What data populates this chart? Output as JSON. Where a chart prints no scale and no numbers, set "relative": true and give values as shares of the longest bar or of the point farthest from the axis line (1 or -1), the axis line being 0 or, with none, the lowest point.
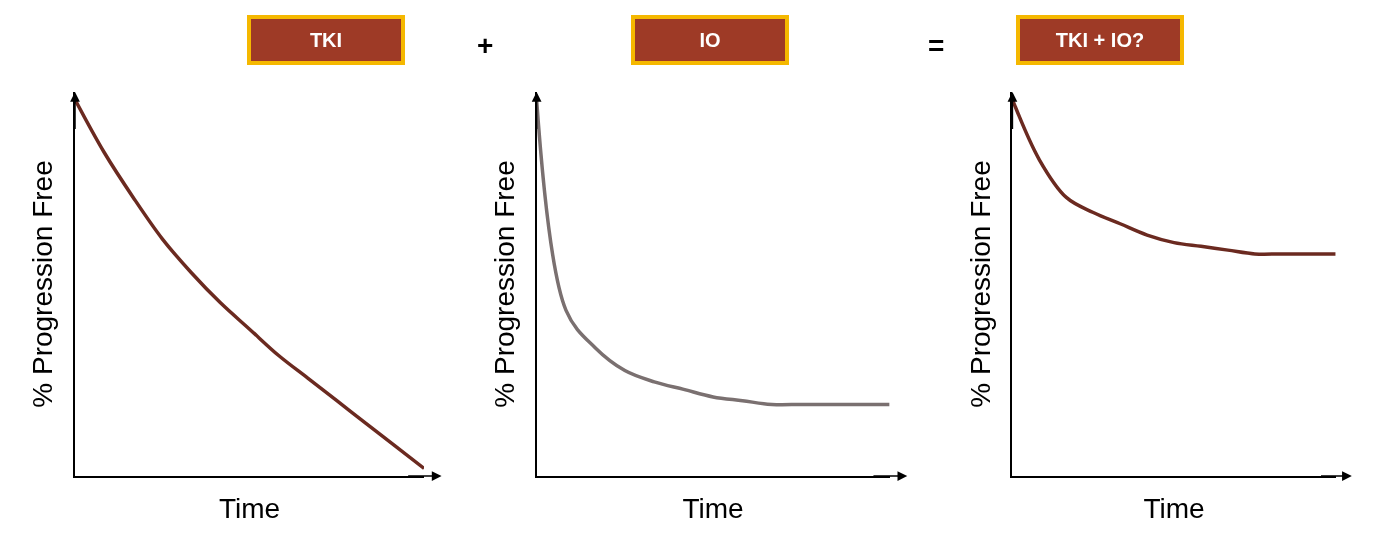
{
  "chart_data": [
    {
      "type": "line",
      "title": "TKI",
      "xlabel": "Time",
      "ylabel": "% Progression Free",
      "relative": true,
      "tick_labels": false,
      "marker": "none",
      "line_style": "solid",
      "categories": [
        null,
        null,
        null,
        null,
        null,
        null,
        null,
        null,
        null,
        null,
        null,
        null,
        null
      ],
      "series": [
        {
          "color": "#6b2a20",
          "values": [
            1,
            0.86,
            0.74,
            0.63,
            0.54,
            0.46,
            0.39,
            0.32,
            0.26,
            0.2,
            0.14,
            0.08,
            0.02
          ]
        }
      ]
    },
    {
      "type": "line",
      "title": "IO",
      "xlabel": "Time",
      "ylabel": "% Progression Free",
      "relative": true,
      "tick_labels": false,
      "marker": "none",
      "line_style": "solid",
      "annotations": [
        "+"
      ],
      "categories": [
        null,
        null,
        null,
        null,
        null,
        null,
        null,
        null,
        null,
        null,
        null,
        null,
        null
      ],
      "series": [
        {
          "color": "#7a7070",
          "values": [
            1,
            0.44,
            0.34,
            0.28,
            0.25,
            0.23,
            0.21,
            0.2,
            0.19,
            0.19,
            0.19,
            0.19,
            0.19
          ]
        }
      ]
    },
    {
      "type": "line",
      "title": "TKI + IO?",
      "xlabel": "Time",
      "ylabel": "% Progression Free",
      "relative": true,
      "tick_labels": false,
      "marker": "none",
      "line_style": "solid",
      "annotations": [
        "="
      ],
      "categories": [
        null,
        null,
        null,
        null,
        null,
        null,
        null,
        null,
        null,
        null,
        null,
        null,
        null
      ],
      "series": [
        {
          "color": "#6b2a20",
          "values": [
            1,
            0.84,
            0.74,
            0.7,
            0.67,
            0.64,
            0.62,
            0.61,
            0.6,
            0.59,
            0.59,
            0.59,
            0.59
          ]
        }
      ]
    }
  ]
}
